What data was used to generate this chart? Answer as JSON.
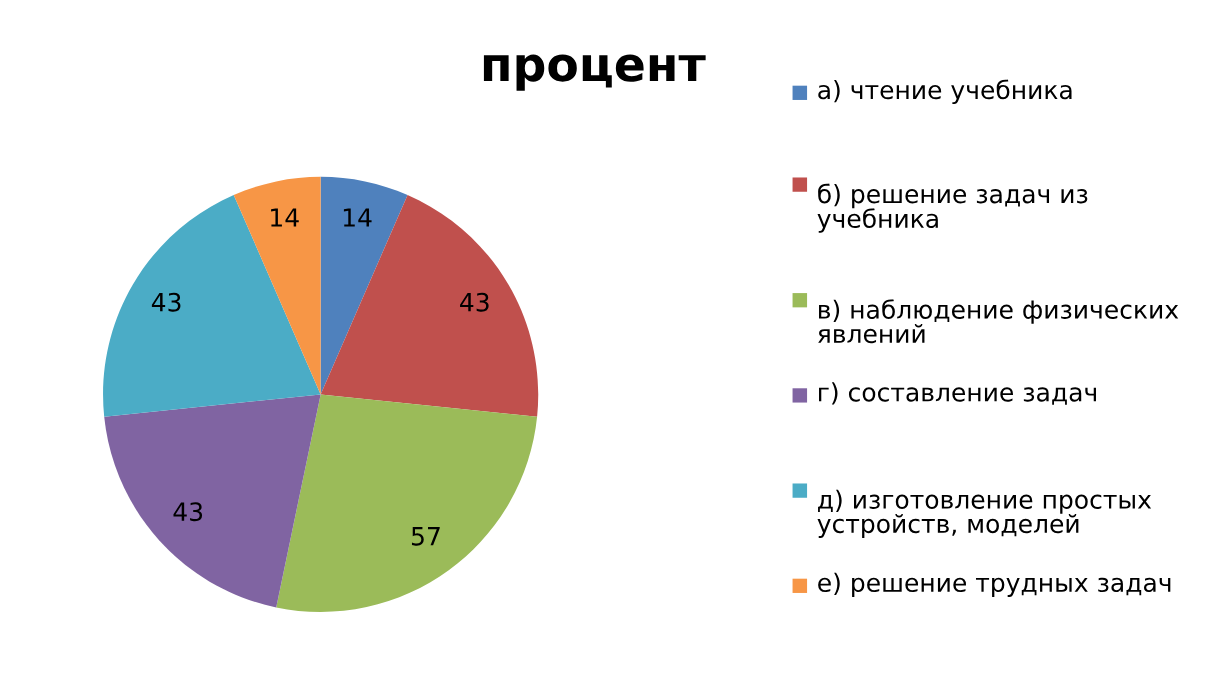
{
  "chart_data": {
    "type": "pie",
    "title": "процент",
    "categories": [
      "а) чтение учебника",
      "б) решение задач из учебника",
      "в) наблюдение физических явлений",
      "г) составление задач",
      "д) изготовление простых устройств, моделей",
      "е) решение трудных задач"
    ],
    "values": [
      14,
      43,
      57,
      43,
      43,
      14
    ],
    "colors": [
      "#4f81bd",
      "#c0504d",
      "#9bbb59",
      "#8064a2",
      "#4bacc6",
      "#f79646"
    ],
    "data_labels": true,
    "legend": "right"
  }
}
